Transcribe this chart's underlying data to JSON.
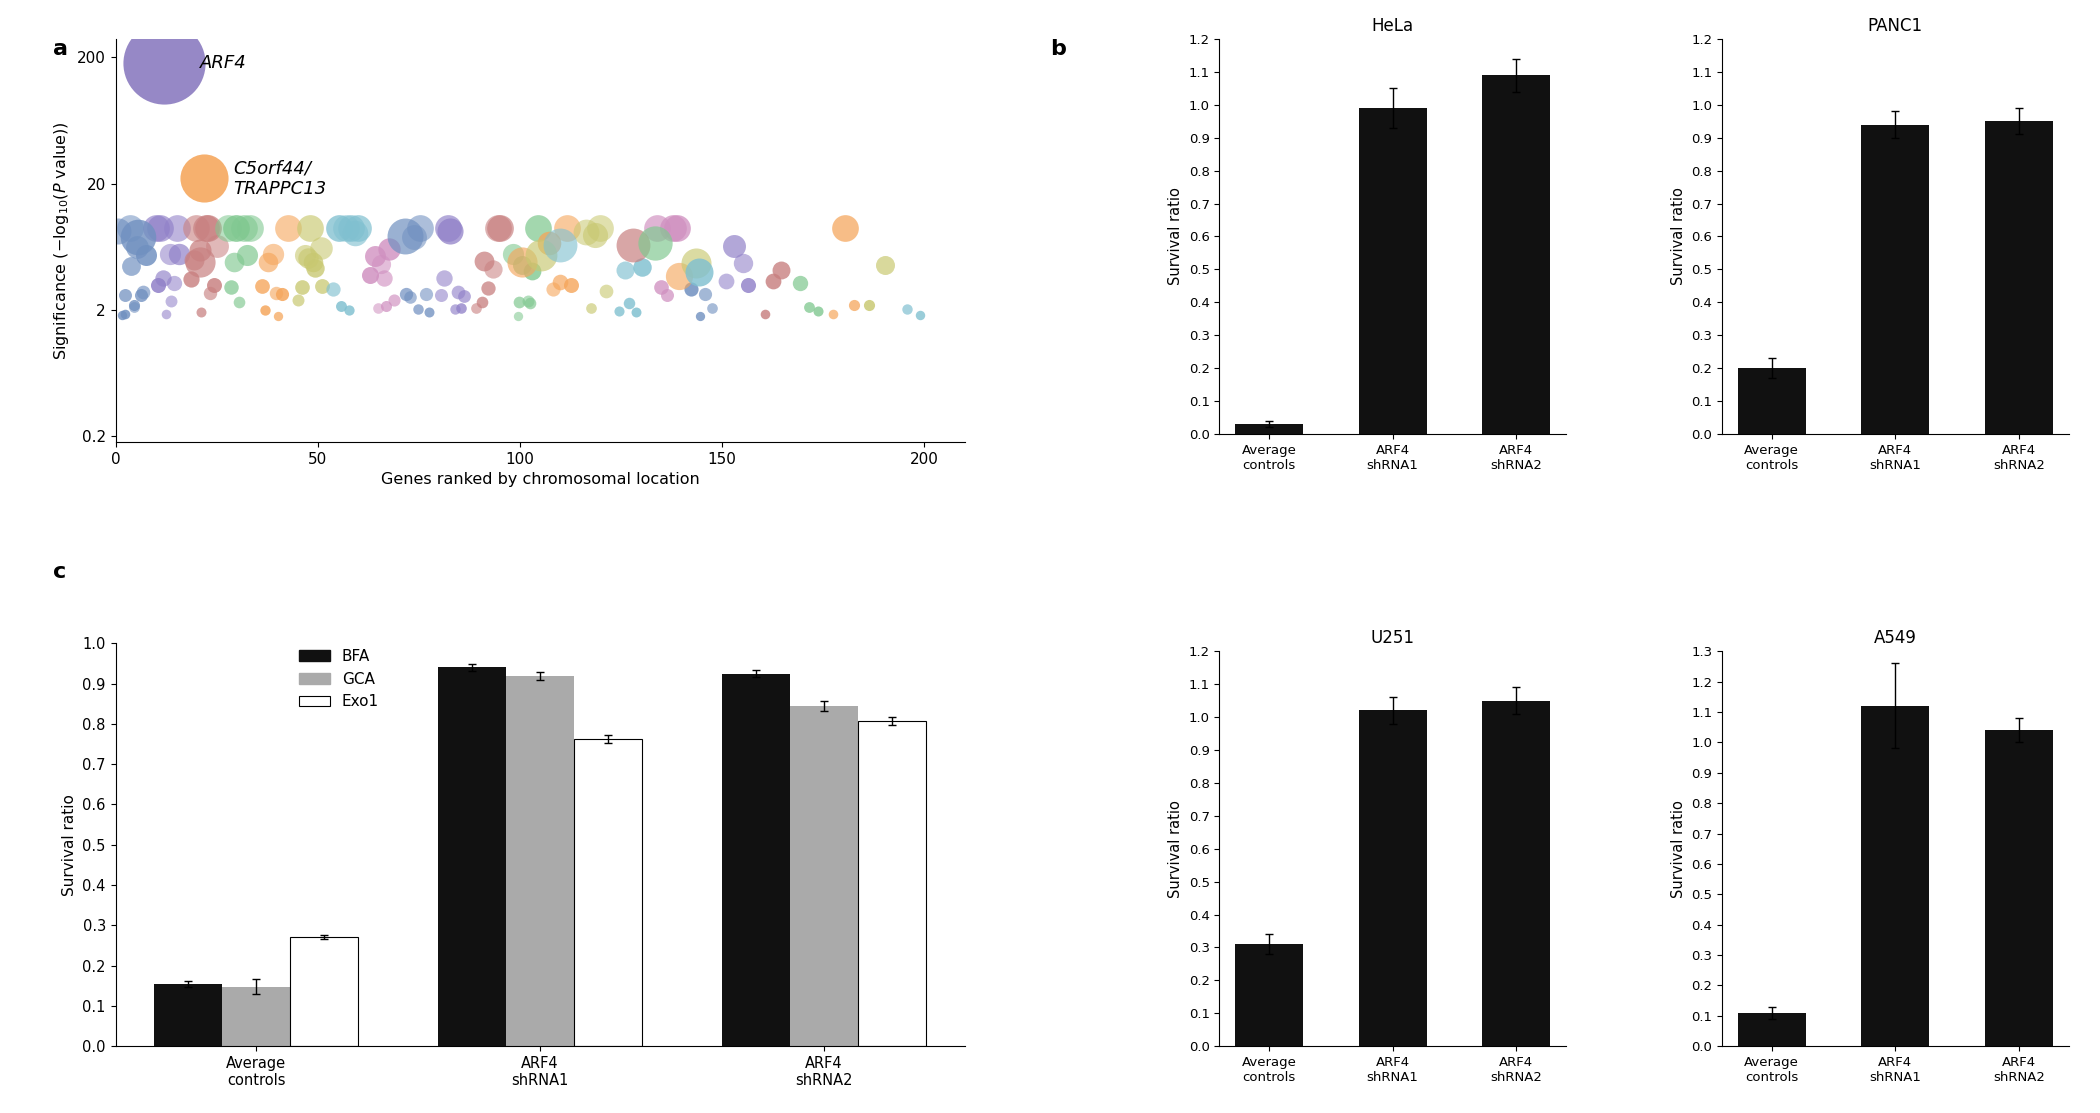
{
  "panel_a": {
    "xlabel": "Genes ranked by chromosomal location",
    "ylabel": "Significance (−log₁₀(P value))",
    "arf4_x": 12,
    "arf4_y": 180,
    "arf4_size": 3500,
    "arf4_color": "#8878BE",
    "arf4_label": "ARF4",
    "trappc13_x": 22,
    "trappc13_y": 22,
    "trappc13_size": 1200,
    "trappc13_color": "#F5A55A",
    "trappc13_label": "C5orf44/\nTRAPPC13",
    "xlim": [
      0,
      210
    ],
    "yticks": [
      0.2,
      2,
      20,
      200
    ],
    "ytick_labels": [
      "0.2",
      "2",
      "20",
      "200"
    ],
    "colors": [
      "#7090C0",
      "#9080C8",
      "#C88080",
      "#80C890",
      "#F5A55A",
      "#C8C870",
      "#80C0D0",
      "#D090C0"
    ],
    "seed": 12
  },
  "panel_b_hela": {
    "title": "HeLa",
    "categories": [
      "Average\ncontrols",
      "ARF4\nshRNA1",
      "ARF4\nshRNA2"
    ],
    "values": [
      0.03,
      0.99,
      1.09
    ],
    "errors": [
      0.01,
      0.06,
      0.05
    ],
    "ylabel": "Survival ratio",
    "ylim": [
      0,
      1.2
    ],
    "yticks": [
      0,
      0.1,
      0.2,
      0.3,
      0.4,
      0.5,
      0.6,
      0.7,
      0.8,
      0.9,
      1.0,
      1.1,
      1.2
    ],
    "bar_color": "#111111"
  },
  "panel_b_panc1": {
    "title": "PANC1",
    "categories": [
      "Average\ncontrols",
      "ARF4\nshRNA1",
      "ARF4\nshRNA2"
    ],
    "values": [
      0.2,
      0.94,
      0.95
    ],
    "errors": [
      0.03,
      0.04,
      0.04
    ],
    "ylabel": "Survival ratio",
    "ylim": [
      0,
      1.2
    ],
    "yticks": [
      0,
      0.1,
      0.2,
      0.3,
      0.4,
      0.5,
      0.6,
      0.7,
      0.8,
      0.9,
      1.0,
      1.1,
      1.2
    ],
    "bar_color": "#111111"
  },
  "panel_b_u251": {
    "title": "U251",
    "categories": [
      "Average\ncontrols",
      "ARF4\nshRNA1",
      "ARF4\nshRNA2"
    ],
    "values": [
      0.31,
      1.02,
      1.05
    ],
    "errors": [
      0.03,
      0.04,
      0.04
    ],
    "ylabel": "Survival ratio",
    "ylim": [
      0,
      1.2
    ],
    "yticks": [
      0,
      0.1,
      0.2,
      0.3,
      0.4,
      0.5,
      0.6,
      0.7,
      0.8,
      0.9,
      1.0,
      1.1,
      1.2
    ],
    "bar_color": "#111111"
  },
  "panel_b_a549": {
    "title": "A549",
    "categories": [
      "Average\ncontrols",
      "ARF4\nshRNA1",
      "ARF4\nshRNA2"
    ],
    "values": [
      0.11,
      1.12,
      1.04
    ],
    "errors": [
      0.02,
      0.14,
      0.04
    ],
    "ylabel": "Survival ratio",
    "ylim": [
      0,
      1.3
    ],
    "yticks": [
      0,
      0.1,
      0.2,
      0.3,
      0.4,
      0.5,
      0.6,
      0.7,
      0.8,
      0.9,
      1.0,
      1.1,
      1.2,
      1.3
    ],
    "bar_color": "#111111"
  },
  "panel_c": {
    "categories": [
      "Average\ncontrols",
      "ARF4\nshRNA1",
      "ARF4\nshRNA2"
    ],
    "bfa_values": [
      0.155,
      0.94,
      0.925
    ],
    "bfa_errors": [
      0.008,
      0.008,
      0.008
    ],
    "gca_values": [
      0.148,
      0.92,
      0.845
    ],
    "gca_errors": [
      0.018,
      0.01,
      0.012
    ],
    "exo1_values": [
      0.272,
      0.762,
      0.808
    ],
    "exo1_errors": [
      0.005,
      0.01,
      0.01
    ],
    "ylabel": "Survival ratio",
    "ylim": [
      0,
      1.0
    ],
    "yticks": [
      0,
      0.1,
      0.2,
      0.3,
      0.4,
      0.5,
      0.6,
      0.7,
      0.8,
      0.9,
      1.0
    ],
    "bfa_color": "#111111",
    "gca_color": "#aaaaaa",
    "exo1_color": "#ffffff",
    "legend_labels": [
      "BFA",
      "GCA",
      "Exo1"
    ]
  }
}
